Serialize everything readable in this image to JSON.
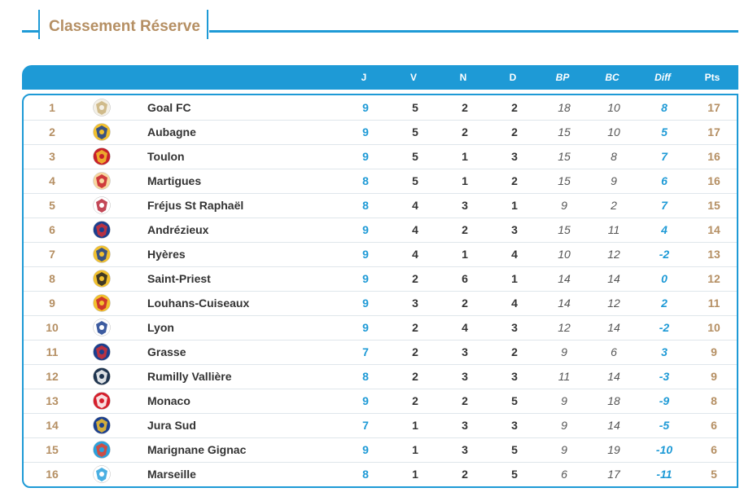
{
  "title": "Classement Réserve",
  "colors": {
    "accent": "#1e9ad6",
    "gold": "#b58f63"
  },
  "headers": {
    "j": "J",
    "v": "V",
    "n": "N",
    "d": "D",
    "bp": "BP",
    "bc": "BC",
    "diff": "Diff",
    "pts": "Pts"
  },
  "rows": [
    {
      "rank": "1",
      "team": "Goal FC",
      "j": "9",
      "v": "5",
      "n": "2",
      "d": "2",
      "bp": "18",
      "bc": "10",
      "diff": "8",
      "pts": "17",
      "logo": "goal-fc-logo",
      "c1": "#f4f0e6",
      "c2": "#c9b27a"
    },
    {
      "rank": "2",
      "team": "Aubagne",
      "j": "9",
      "v": "5",
      "n": "2",
      "d": "2",
      "bp": "15",
      "bc": "10",
      "diff": "5",
      "pts": "17",
      "logo": "aubagne-logo",
      "c1": "#f2c12e",
      "c2": "#1b3f8f"
    },
    {
      "rank": "3",
      "team": "Toulon",
      "j": "9",
      "v": "5",
      "n": "1",
      "d": "3",
      "bp": "15",
      "bc": "8",
      "diff": "7",
      "pts": "16",
      "logo": "toulon-logo",
      "c1": "#c8202a",
      "c2": "#f2c12e"
    },
    {
      "rank": "4",
      "team": "Martigues",
      "j": "8",
      "v": "5",
      "n": "1",
      "d": "2",
      "bp": "15",
      "bc": "9",
      "diff": "6",
      "pts": "16",
      "logo": "martigues-logo",
      "c1": "#f7d7a0",
      "c2": "#c8202a"
    },
    {
      "rank": "5",
      "team": "Fréjus St Raphaël",
      "j": "8",
      "v": "4",
      "n": "3",
      "d": "1",
      "bp": "9",
      "bc": "2",
      "diff": "7",
      "pts": "15",
      "logo": "frejus-logo",
      "c1": "#ffffff",
      "c2": "#b8283a"
    },
    {
      "rank": "6",
      "team": "Andrézieux",
      "j": "9",
      "v": "4",
      "n": "2",
      "d": "3",
      "bp": "15",
      "bc": "11",
      "diff": "4",
      "pts": "14",
      "logo": "andrezieux-logo",
      "c1": "#1b3f8f",
      "c2": "#d23036"
    },
    {
      "rank": "7",
      "team": "Hyères",
      "j": "9",
      "v": "4",
      "n": "1",
      "d": "4",
      "bp": "10",
      "bc": "12",
      "diff": "-2",
      "pts": "13",
      "logo": "hyeres-logo",
      "c1": "#f2c12e",
      "c2": "#1b3f8f"
    },
    {
      "rank": "8",
      "team": "Saint-Priest",
      "j": "9",
      "v": "2",
      "n": "6",
      "d": "1",
      "bp": "14",
      "bc": "14",
      "diff": "0",
      "pts": "12",
      "logo": "saint-priest-logo",
      "c1": "#f2c12e",
      "c2": "#222222"
    },
    {
      "rank": "9",
      "team": "Louhans-Cuiseaux",
      "j": "9",
      "v": "3",
      "n": "2",
      "d": "4",
      "bp": "14",
      "bc": "12",
      "diff": "2",
      "pts": "11",
      "logo": "louhans-cuiseaux-logo",
      "c1": "#f2c12e",
      "c2": "#c8202a"
    },
    {
      "rank": "10",
      "team": "Lyon",
      "j": "9",
      "v": "2",
      "n": "4",
      "d": "3",
      "bp": "12",
      "bc": "14",
      "diff": "-2",
      "pts": "10",
      "logo": "lyon-logo",
      "c1": "#ffffff",
      "c2": "#1b3f8f"
    },
    {
      "rank": "11",
      "team": "Grasse",
      "j": "7",
      "v": "2",
      "n": "3",
      "d": "2",
      "bp": "9",
      "bc": "6",
      "diff": "3",
      "pts": "9",
      "logo": "grasse-logo",
      "c1": "#1b3f8f",
      "c2": "#d23036"
    },
    {
      "rank": "12",
      "team": "Rumilly Vallière",
      "j": "8",
      "v": "2",
      "n": "3",
      "d": "3",
      "bp": "11",
      "bc": "14",
      "diff": "-3",
      "pts": "9",
      "logo": "rumilly-logo",
      "c1": "#1f3550",
      "c2": "#ffffff"
    },
    {
      "rank": "13",
      "team": "Monaco",
      "j": "9",
      "v": "2",
      "n": "2",
      "d": "5",
      "bp": "9",
      "bc": "18",
      "diff": "-9",
      "pts": "8",
      "logo": "monaco-logo",
      "c1": "#d61f2c",
      "c2": "#ffffff"
    },
    {
      "rank": "14",
      "team": "Jura Sud",
      "j": "7",
      "v": "1",
      "n": "3",
      "d": "3",
      "bp": "9",
      "bc": "14",
      "diff": "-5",
      "pts": "6",
      "logo": "jura-sud-logo",
      "c1": "#1b3f8f",
      "c2": "#f2c12e"
    },
    {
      "rank": "15",
      "team": "Marignane Gignac",
      "j": "9",
      "v": "1",
      "n": "3",
      "d": "5",
      "bp": "9",
      "bc": "19",
      "diff": "-10",
      "pts": "6",
      "logo": "marignane-gignac-logo",
      "c1": "#2aa1dd",
      "c2": "#e8402b"
    },
    {
      "rank": "16",
      "team": "Marseille",
      "j": "8",
      "v": "1",
      "n": "2",
      "d": "5",
      "bp": "6",
      "bc": "17",
      "diff": "-11",
      "pts": "5",
      "logo": "marseille-logo",
      "c1": "#ffffff",
      "c2": "#2aa1dd"
    }
  ]
}
